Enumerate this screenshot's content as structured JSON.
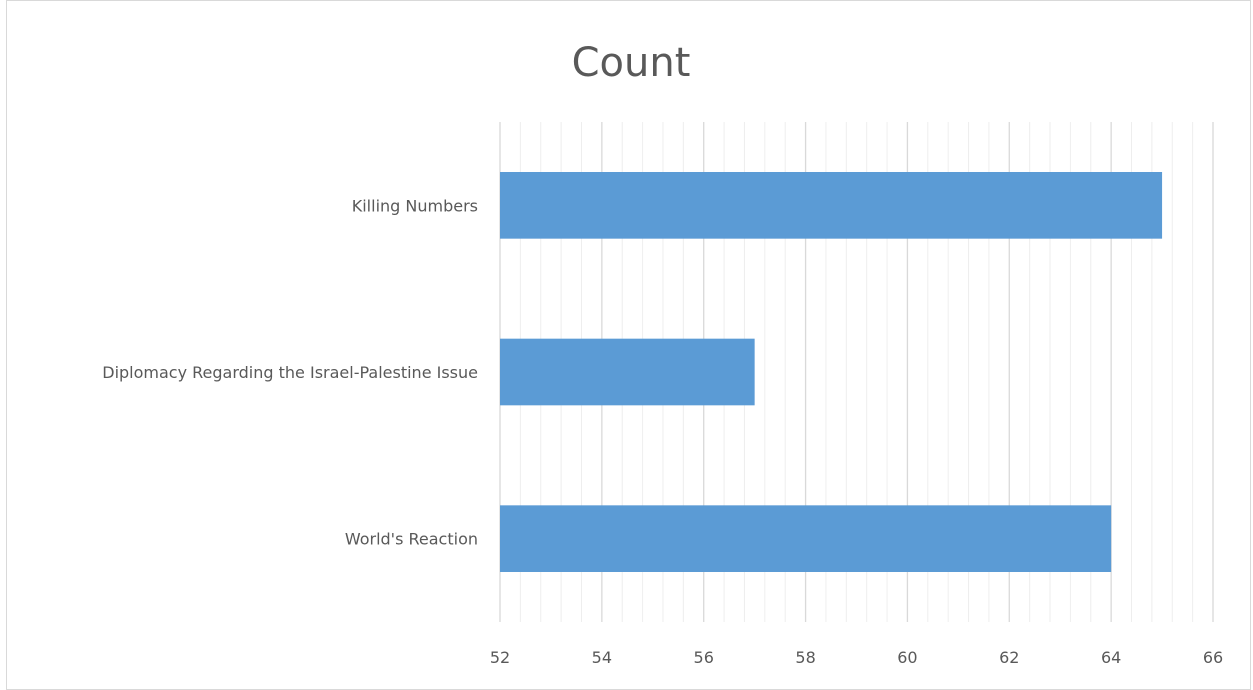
{
  "chart_data": {
    "type": "bar",
    "orientation": "horizontal",
    "title": "Count",
    "categories": [
      "Killing Numbers",
      "Diplomacy Regarding the Israel-Palestine Issue",
      "World's Reaction"
    ],
    "values": [
      65,
      57,
      64
    ],
    "xlim": [
      52,
      66
    ],
    "major_ticks": [
      52,
      54,
      56,
      58,
      60,
      62,
      64,
      66
    ],
    "minor_gridlines": true,
    "major_gridlines": true,
    "legend": "none",
    "colors": {
      "bar": "#5b9bd5",
      "major_grid": "#d9d9d9",
      "minor_grid": "#eeeeee",
      "text": "#595959"
    }
  }
}
